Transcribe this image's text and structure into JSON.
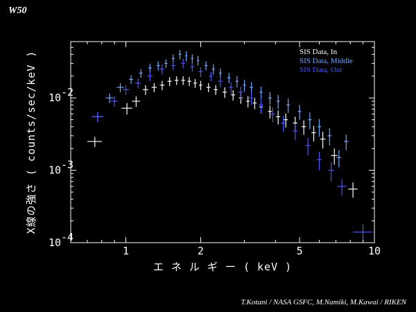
{
  "corner_title": "W50",
  "credit": "T.Kotani / NASA GSFC,   M.Namiki, M.Kawai / RIKEN",
  "chart_data": {
    "type": "scatter",
    "xlabel": "エ ネ ル ギ ー ( keV )",
    "ylabel": "X線の強さ ( counts/sec/keV )",
    "xscale": "log",
    "yscale": "log",
    "xlim": [
      0.6,
      10
    ],
    "ylim": [
      0.0001,
      0.06
    ],
    "x_ticks": [
      {
        "value": 1,
        "label": "1"
      },
      {
        "value": 2,
        "label": "2"
      },
      {
        "value": 5,
        "label": "5"
      },
      {
        "value": 10,
        "label": "10"
      }
    ],
    "y_ticks": [
      {
        "value": 0.01,
        "base": "10",
        "exp": "-2"
      },
      {
        "value": 0.001,
        "base": "10",
        "exp": "-3"
      },
      {
        "value": 0.0001,
        "base": "10",
        "exp": "-4"
      }
    ],
    "grid": false,
    "legend_position": "top-right",
    "series": [
      {
        "name": "SIS Data, In",
        "color": "#ffffff",
        "points": [
          {
            "x": 0.75,
            "xerr": 0.05,
            "y": 0.0025,
            "yerr": 0.0004
          },
          {
            "x": 1.01,
            "xerr": 0.05,
            "y": 0.0072,
            "yerr": 0.0013
          },
          {
            "x": 1.1,
            "xerr": 0.04,
            "y": 0.009,
            "yerr": 0.0015
          },
          {
            "x": 1.2,
            "xerr": 0.03,
            "y": 0.013,
            "yerr": 0.002
          },
          {
            "x": 1.3,
            "xerr": 0.03,
            "y": 0.014,
            "yerr": 0.002
          },
          {
            "x": 1.4,
            "xerr": 0.03,
            "y": 0.015,
            "yerr": 0.0022
          },
          {
            "x": 1.5,
            "xerr": 0.03,
            "y": 0.017,
            "yerr": 0.0024
          },
          {
            "x": 1.6,
            "xerr": 0.03,
            "y": 0.0175,
            "yerr": 0.0024
          },
          {
            "x": 1.7,
            "xerr": 0.03,
            "y": 0.0175,
            "yerr": 0.0024
          },
          {
            "x": 1.8,
            "xerr": 0.03,
            "y": 0.017,
            "yerr": 0.0024
          },
          {
            "x": 1.9,
            "xerr": 0.03,
            "y": 0.016,
            "yerr": 0.0022
          },
          {
            "x": 2.0,
            "xerr": 0.03,
            "y": 0.015,
            "yerr": 0.0022
          },
          {
            "x": 2.15,
            "xerr": 0.04,
            "y": 0.014,
            "yerr": 0.002
          },
          {
            "x": 2.3,
            "xerr": 0.04,
            "y": 0.013,
            "yerr": 0.002
          },
          {
            "x": 2.5,
            "xerr": 0.05,
            "y": 0.012,
            "yerr": 0.002
          },
          {
            "x": 2.7,
            "xerr": 0.05,
            "y": 0.011,
            "yerr": 0.0018
          },
          {
            "x": 2.9,
            "xerr": 0.05,
            "y": 0.01,
            "yerr": 0.0017
          },
          {
            "x": 3.1,
            "xerr": 0.05,
            "y": 0.009,
            "yerr": 0.0016
          },
          {
            "x": 3.3,
            "xerr": 0.06,
            "y": 0.0085,
            "yerr": 0.0015
          },
          {
            "x": 3.5,
            "xerr": 0.06,
            "y": 0.0075,
            "yerr": 0.0014
          },
          {
            "x": 3.8,
            "xerr": 0.07,
            "y": 0.0065,
            "yerr": 0.0013
          },
          {
            "x": 4.1,
            "xerr": 0.08,
            "y": 0.0055,
            "yerr": 0.0012
          },
          {
            "x": 4.4,
            "xerr": 0.08,
            "y": 0.005,
            "yerr": 0.0011
          },
          {
            "x": 4.8,
            "xerr": 0.1,
            "y": 0.0045,
            "yerr": 0.001
          },
          {
            "x": 5.2,
            "xerr": 0.1,
            "y": 0.004,
            "yerr": 0.0009
          },
          {
            "x": 5.7,
            "xerr": 0.12,
            "y": 0.0033,
            "yerr": 0.0008
          },
          {
            "x": 6.2,
            "xerr": 0.15,
            "y": 0.0027,
            "yerr": 0.0007
          },
          {
            "x": 6.9,
            "xerr": 0.2,
            "y": 0.0016,
            "yerr": 0.0004
          },
          {
            "x": 8.2,
            "xerr": 0.35,
            "y": 0.00055,
            "yerr": 0.00013
          }
        ]
      },
      {
        "name": "SIS Data, Middle",
        "color": "#74a8ff",
        "points": [
          {
            "x": 0.77,
            "xerr": 0.04,
            "y": 0.0055,
            "yerr": 0.0008
          },
          {
            "x": 0.86,
            "xerr": 0.03,
            "y": 0.01,
            "yerr": 0.0015
          },
          {
            "x": 0.95,
            "xerr": 0.03,
            "y": 0.014,
            "yerr": 0.002
          },
          {
            "x": 1.05,
            "xerr": 0.02,
            "y": 0.018,
            "yerr": 0.0025
          },
          {
            "x": 1.15,
            "xerr": 0.02,
            "y": 0.022,
            "yerr": 0.003
          },
          {
            "x": 1.25,
            "xerr": 0.02,
            "y": 0.026,
            "yerr": 0.0035
          },
          {
            "x": 1.35,
            "xerr": 0.02,
            "y": 0.028,
            "yerr": 0.004
          },
          {
            "x": 1.45,
            "xerr": 0.02,
            "y": 0.03,
            "yerr": 0.004
          },
          {
            "x": 1.55,
            "xerr": 0.02,
            "y": 0.035,
            "yerr": 0.005
          },
          {
            "x": 1.65,
            "xerr": 0.02,
            "y": 0.04,
            "yerr": 0.006
          },
          {
            "x": 1.75,
            "xerr": 0.02,
            "y": 0.038,
            "yerr": 0.006
          },
          {
            "x": 1.85,
            "xerr": 0.02,
            "y": 0.035,
            "yerr": 0.005
          },
          {
            "x": 1.95,
            "xerr": 0.02,
            "y": 0.033,
            "yerr": 0.005
          },
          {
            "x": 2.1,
            "xerr": 0.03,
            "y": 0.028,
            "yerr": 0.004
          },
          {
            "x": 2.25,
            "xerr": 0.03,
            "y": 0.025,
            "yerr": 0.004
          },
          {
            "x": 2.4,
            "xerr": 0.03,
            "y": 0.022,
            "yerr": 0.0035
          },
          {
            "x": 2.6,
            "xerr": 0.04,
            "y": 0.019,
            "yerr": 0.003
          },
          {
            "x": 2.8,
            "xerr": 0.04,
            "y": 0.017,
            "yerr": 0.003
          },
          {
            "x": 3.0,
            "xerr": 0.04,
            "y": 0.015,
            "yerr": 0.0028
          },
          {
            "x": 3.2,
            "xerr": 0.05,
            "y": 0.014,
            "yerr": 0.0025
          },
          {
            "x": 3.5,
            "xerr": 0.05,
            "y": 0.012,
            "yerr": 0.0023
          },
          {
            "x": 3.8,
            "xerr": 0.06,
            "y": 0.01,
            "yerr": 0.002
          },
          {
            "x": 4.1,
            "xerr": 0.06,
            "y": 0.009,
            "yerr": 0.002
          },
          {
            "x": 4.5,
            "xerr": 0.07,
            "y": 0.008,
            "yerr": 0.0018
          },
          {
            "x": 5.0,
            "xerr": 0.08,
            "y": 0.0065,
            "yerr": 0.0015
          },
          {
            "x": 5.5,
            "xerr": 0.09,
            "y": 0.005,
            "yerr": 0.0013
          },
          {
            "x": 6.0,
            "xerr": 0.1,
            "y": 0.004,
            "yerr": 0.0011
          },
          {
            "x": 6.6,
            "xerr": 0.12,
            "y": 0.003,
            "yerr": 0.0008
          },
          {
            "x": 7.2,
            "xerr": 0.15,
            "y": 0.0015,
            "yerr": 0.0004
          },
          {
            "x": 7.7,
            "xerr": 0.15,
            "y": 0.0025,
            "yerr": 0.0006
          }
        ]
      },
      {
        "name": "SIS Data, Out",
        "color": "#4a55ff",
        "points": [
          {
            "x": 0.77,
            "xerr": 0.04,
            "y": 0.0055,
            "yerr": 0.0009
          },
          {
            "x": 0.9,
            "xerr": 0.03,
            "y": 0.009,
            "yerr": 0.0015
          },
          {
            "x": 1.0,
            "xerr": 0.03,
            "y": 0.013,
            "yerr": 0.002
          },
          {
            "x": 1.12,
            "xerr": 0.03,
            "y": 0.016,
            "yerr": 0.0025
          },
          {
            "x": 1.25,
            "xerr": 0.03,
            "y": 0.02,
            "yerr": 0.003
          },
          {
            "x": 1.4,
            "xerr": 0.03,
            "y": 0.025,
            "yerr": 0.004
          },
          {
            "x": 1.55,
            "xerr": 0.03,
            "y": 0.028,
            "yerr": 0.004
          },
          {
            "x": 1.7,
            "xerr": 0.03,
            "y": 0.03,
            "yerr": 0.0045
          },
          {
            "x": 1.85,
            "xerr": 0.03,
            "y": 0.027,
            "yerr": 0.004
          },
          {
            "x": 2.0,
            "xerr": 0.04,
            "y": 0.023,
            "yerr": 0.0035
          },
          {
            "x": 2.2,
            "xerr": 0.04,
            "y": 0.02,
            "yerr": 0.003
          },
          {
            "x": 2.4,
            "xerr": 0.05,
            "y": 0.017,
            "yerr": 0.003
          },
          {
            "x": 2.65,
            "xerr": 0.05,
            "y": 0.014,
            "yerr": 0.0025
          },
          {
            "x": 2.9,
            "xerr": 0.06,
            "y": 0.012,
            "yerr": 0.0023
          },
          {
            "x": 3.2,
            "xerr": 0.06,
            "y": 0.01,
            "yerr": 0.002
          },
          {
            "x": 3.5,
            "xerr": 0.07,
            "y": 0.008,
            "yerr": 0.0018
          },
          {
            "x": 3.9,
            "xerr": 0.08,
            "y": 0.006,
            "yerr": 0.0014
          },
          {
            "x": 4.3,
            "xerr": 0.09,
            "y": 0.0045,
            "yerr": 0.0011
          },
          {
            "x": 4.8,
            "xerr": 0.1,
            "y": 0.0035,
            "yerr": 0.0009
          },
          {
            "x": 5.4,
            "xerr": 0.12,
            "y": 0.0022,
            "yerr": 0.0006
          },
          {
            "x": 6.0,
            "xerr": 0.13,
            "y": 0.0014,
            "yerr": 0.0004
          },
          {
            "x": 6.7,
            "xerr": 0.18,
            "y": 0.001,
            "yerr": 0.0003
          },
          {
            "x": 7.4,
            "xerr": 0.3,
            "y": 0.0006,
            "yerr": 0.00015
          },
          {
            "x": 9.0,
            "xerr": 0.8,
            "y": 0.00014,
            "yerr": 4e-05
          }
        ]
      }
    ]
  }
}
